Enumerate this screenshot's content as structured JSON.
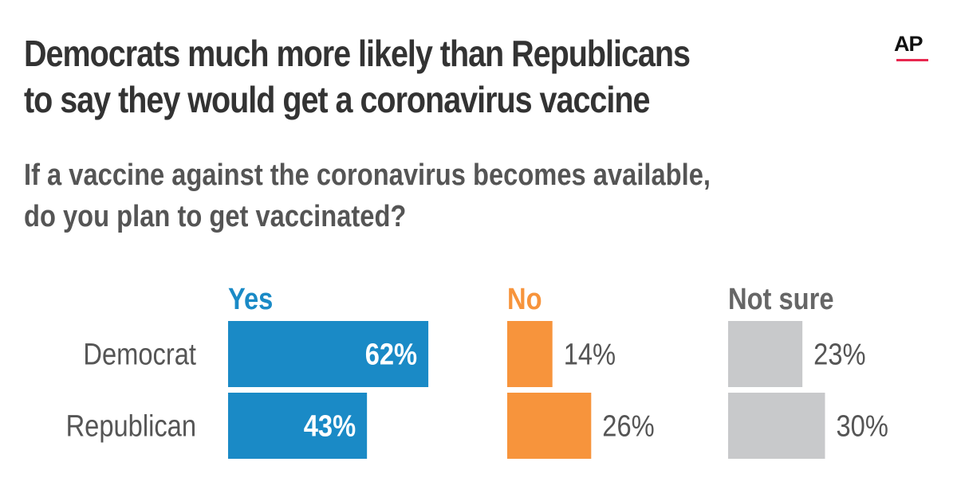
{
  "title_lines": [
    "Democrats much more likely than Republicans",
    "to say they would get a coronavirus vaccine"
  ],
  "subtitle_lines": [
    "If a vaccine against the coronavirus becomes available,",
    "do you plan to get vaccinated?"
  ],
  "logo": {
    "text": "AP",
    "accent_color": "#e8284f"
  },
  "chart_data": {
    "type": "bar",
    "orientation": "horizontal",
    "title": "Democrats much more likely than Republicans to say they would get a coronavirus vaccine",
    "subtitle": "If a vaccine against the coronavirus becomes available, do you plan to get vaccinated?",
    "categories": [
      "Democrat",
      "Republican"
    ],
    "series": [
      {
        "name": "Yes",
        "color": "#1a8ac6",
        "label_color": "#1a8ac6",
        "values": [
          62,
          43
        ],
        "labels": [
          "62%",
          "43%"
        ],
        "label_position": "inside"
      },
      {
        "name": "No",
        "color": "#f7943c",
        "label_color": "#f7943c",
        "values": [
          14,
          26
        ],
        "labels": [
          "14%",
          "26%"
        ],
        "label_position": "outside"
      },
      {
        "name": "Not sure",
        "color": "#c8c9cb",
        "label_color": "#666666",
        "values": [
          23,
          30
        ],
        "labels": [
          "23%",
          "30%"
        ],
        "label_position": "outside"
      }
    ],
    "unit": "%",
    "xlim": [
      0,
      100
    ],
    "grid": false,
    "legend": "none"
  }
}
